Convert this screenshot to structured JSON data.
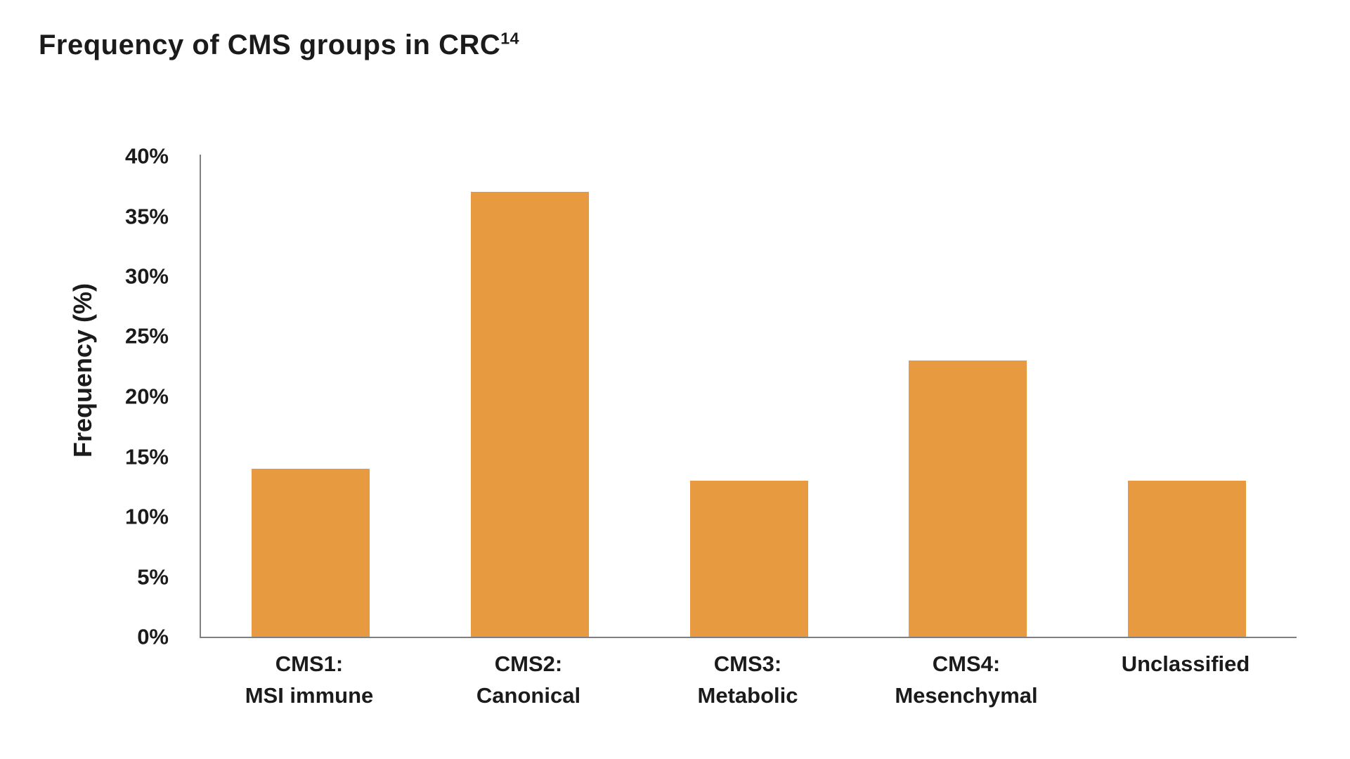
{
  "title": {
    "text": "Frequency of CMS groups in CRC",
    "superscript": "14"
  },
  "chart_data": {
    "type": "bar",
    "title": "Frequency of CMS groups in CRC¹⁴",
    "ylabel": "Frequency (%)",
    "xlabel": "",
    "ylim": [
      0,
      40
    ],
    "ytick_step": 5,
    "ytick_suffix": "%",
    "grid": false,
    "legend": "none",
    "bar_color": "#E79A3F",
    "axis_color": "#7F7F7F",
    "text_color": "#1B1B1B",
    "categories": [
      [
        "CMS1:",
        "MSI immune"
      ],
      [
        "CMS2:",
        "Canonical"
      ],
      [
        "CMS3:",
        "Metabolic"
      ],
      [
        "CMS4:",
        "Mesenchymal"
      ],
      [
        "Unclassified"
      ]
    ],
    "values": [
      14,
      37,
      13,
      23,
      13
    ]
  }
}
